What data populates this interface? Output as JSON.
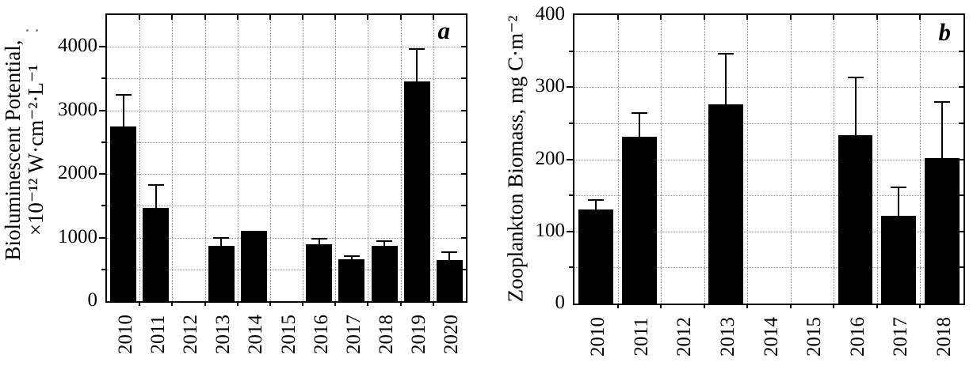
{
  "figure": {
    "background": "#ffffff",
    "bar_color": "#000000",
    "grid_color": "#9a9a9a",
    "panel_a_label": "a",
    "panel_b_label": "b"
  },
  "chart_data": [
    {
      "type": "bar",
      "panel_label": "a",
      "title": "",
      "xlabel": "",
      "ylabel": "Bioluminescent Potential, ×10⁻¹² W·cm⁻²·L⁻¹",
      "ylabel_lines": [
        "Bioluminescent Potential,",
        "×10⁻¹² W·cm⁻²·L⁻¹"
      ],
      "categories": [
        "2010",
        "2011",
        "2012",
        "2013",
        "2014",
        "2015",
        "2016",
        "2017",
        "2018",
        "2019",
        "2020"
      ],
      "values": [
        2750,
        1470,
        0,
        870,
        1110,
        0,
        900,
        655,
        865,
        3460,
        645
      ],
      "errors": [
        500,
        360,
        null,
        130,
        null,
        null,
        85,
        50,
        80,
        500,
        130
      ],
      "ylim": [
        0,
        4500
      ],
      "ytick_values": [
        0,
        1000,
        2000,
        3000,
        4000
      ],
      "ytick_labels": [
        "0",
        "1000",
        "2000",
        "3000",
        "4000"
      ],
      "grid_step": 500,
      "grid": true,
      "legend": null,
      "bar_color": "#000000"
    },
    {
      "type": "bar",
      "panel_label": "b",
      "title": "",
      "xlabel": "",
      "ylabel": "Zooplankton Biomass, mg C·m⁻²",
      "ylabel_lines": [
        "Zooplankton Biomass, mg C·m⁻²"
      ],
      "categories": [
        "2010",
        "2011",
        "2012",
        "2013",
        "2014",
        "2015",
        "2016",
        "2017",
        "2018"
      ],
      "values": [
        130,
        231,
        0,
        276,
        0,
        0,
        233,
        122,
        202
      ],
      "errors": [
        14,
        33,
        null,
        70,
        null,
        null,
        80,
        39,
        78
      ],
      "ylim": [
        0,
        400
      ],
      "ytick_values": [
        0,
        100,
        200,
        300,
        400
      ],
      "ytick_labels": [
        "0",
        "100",
        "200",
        "300",
        "400"
      ],
      "grid_step": 50,
      "grid": true,
      "legend": null,
      "bar_color": "#000000"
    }
  ]
}
